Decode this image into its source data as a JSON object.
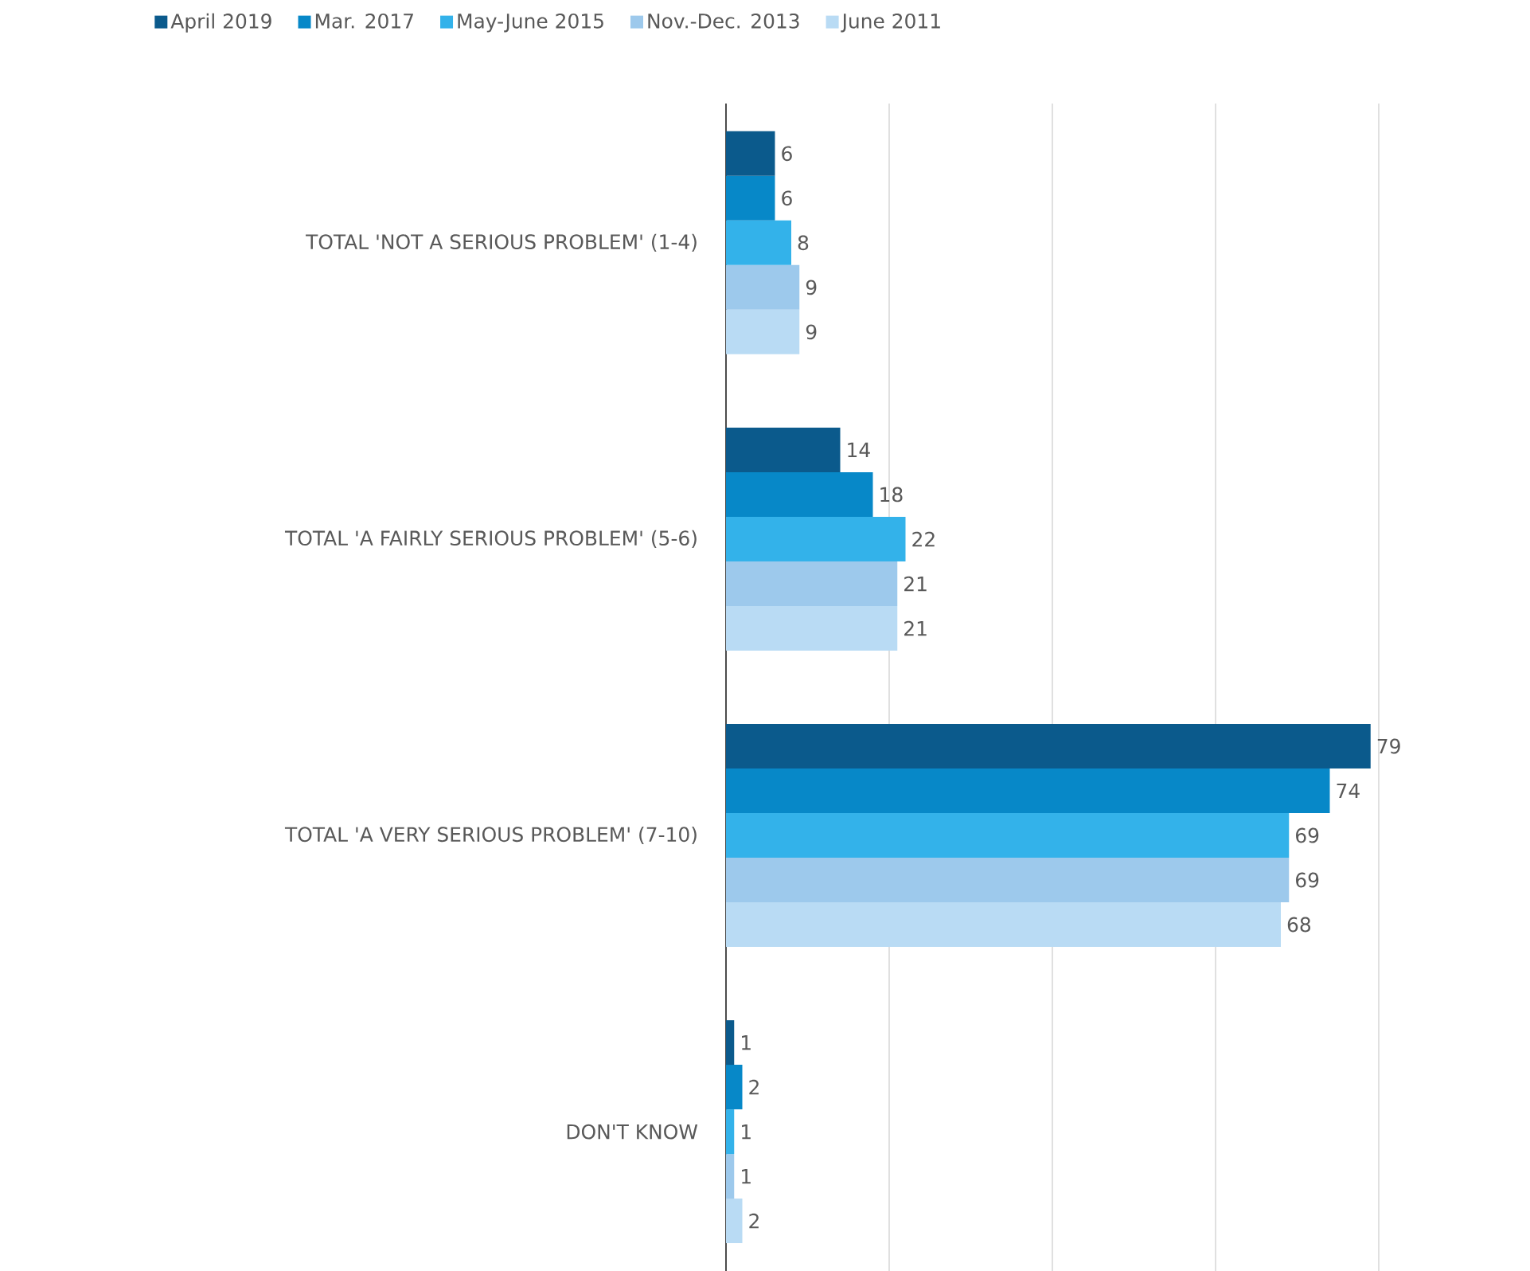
{
  "chart_data": {
    "type": "bar",
    "orientation": "horizontal",
    "categories": [
      "TOTAL 'NOT A SERIOUS PROBLEM' (1-4)",
      "TOTAL 'A FAIRLY SERIOUS PROBLEM' (5-6)",
      "TOTAL 'A VERY SERIOUS PROBLEM' (7-10)",
      "DON'T KNOW"
    ],
    "series": [
      {
        "name": "April 2019",
        "color": "#0b5a8c",
        "values": [
          6,
          14,
          79,
          1
        ]
      },
      {
        "name": "Mar. 2017",
        "color": "#0788c8",
        "values": [
          6,
          18,
          74,
          2
        ]
      },
      {
        "name": "May-June 2015",
        "color": "#33b2ea",
        "values": [
          8,
          22,
          69,
          1
        ]
      },
      {
        "name": "Nov.-Dec. 2013",
        "color": "#9dc9ec",
        "values": [
          9,
          21,
          69,
          1
        ]
      },
      {
        "name": "June 2011",
        "color": "#b9dbf4",
        "values": [
          9,
          21,
          68,
          2
        ]
      }
    ],
    "xlim": [
      0,
      80
    ],
    "xticks": [
      {
        "value": 20,
        "label": null
      },
      {
        "value": 40,
        "label": null
      },
      {
        "value": 60,
        "label": null
      },
      {
        "value": 80,
        "label": null
      }
    ],
    "tick_labels": "y",
    "grid": "x",
    "legend": "top",
    "data_labels": true
  }
}
